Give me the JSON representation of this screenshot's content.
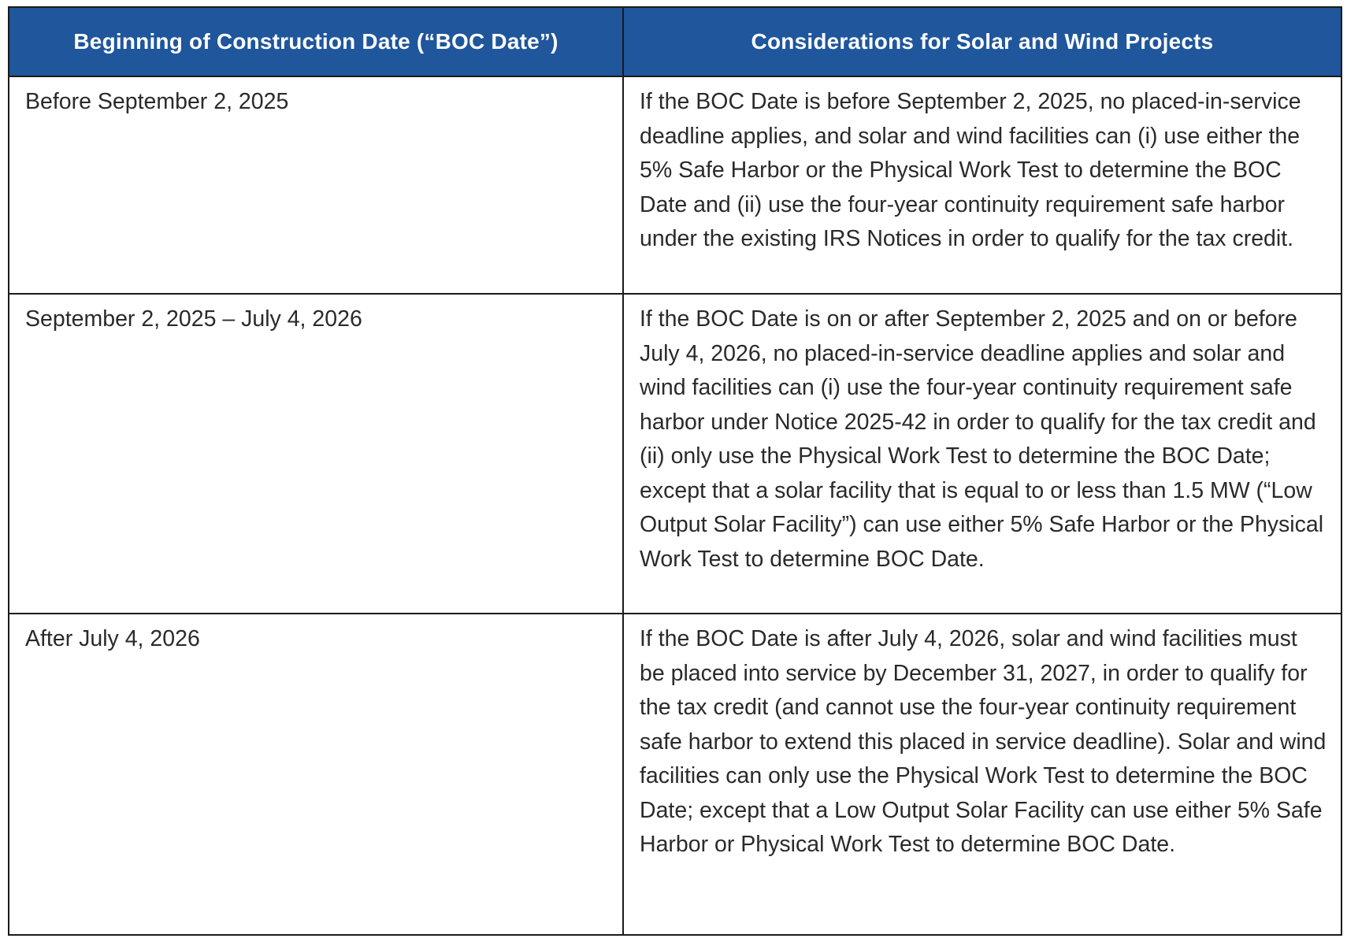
{
  "table": {
    "headers": [
      "Beginning of Construction Date (“BOC Date”)",
      "Considerations for Solar and Wind Projects"
    ],
    "rows": [
      {
        "date": "Before September 2, 2025",
        "considerations": "If the BOC Date is before September 2, 2025, no placed-in-service deadline applies, and solar and wind facilities can (i) use either the 5% Safe Harbor or the Physical Work Test to determine the BOC Date and (ii) use the four-year continuity requirement safe harbor under the existing IRS Notices in order to qualify for the tax credit."
      },
      {
        "date": "September 2, 2025 – July 4, 2026",
        "considerations": "If the BOC Date is on or after September 2, 2025 and on or before July 4, 2026, no placed-in-service deadline applies and solar and wind facilities can (i) use the four-year continuity requirement safe harbor under Notice 2025-42 in order to qualify for the tax credit and (ii) only use the Physical Work Test to determine the BOC Date; except that a solar facility that is equal to or less than 1.5 MW (“Low Output Solar Facility”) can use either 5% Safe Harbor or the Physical Work Test to determine BOC Date."
      },
      {
        "date": "After July 4, 2026",
        "considerations": "If the BOC Date is after July 4, 2026, solar and wind facilities must be placed into service by December 31, 2027, in order to qualify for the tax credit (and cannot use the four-year continuity requirement safe harbor to extend this placed in service deadline). Solar and wind facilities can only use the Physical Work Test to determine the BOC Date; except that a Low Output Solar Facility can use either 5% Safe Harbor or Physical Work Test to determine BOC Date."
      }
    ]
  },
  "colors": {
    "header_background": "#1f569c",
    "header_text": "#ffffff",
    "border": "#1a1a1a",
    "body_text": "#2a2a2a"
  }
}
